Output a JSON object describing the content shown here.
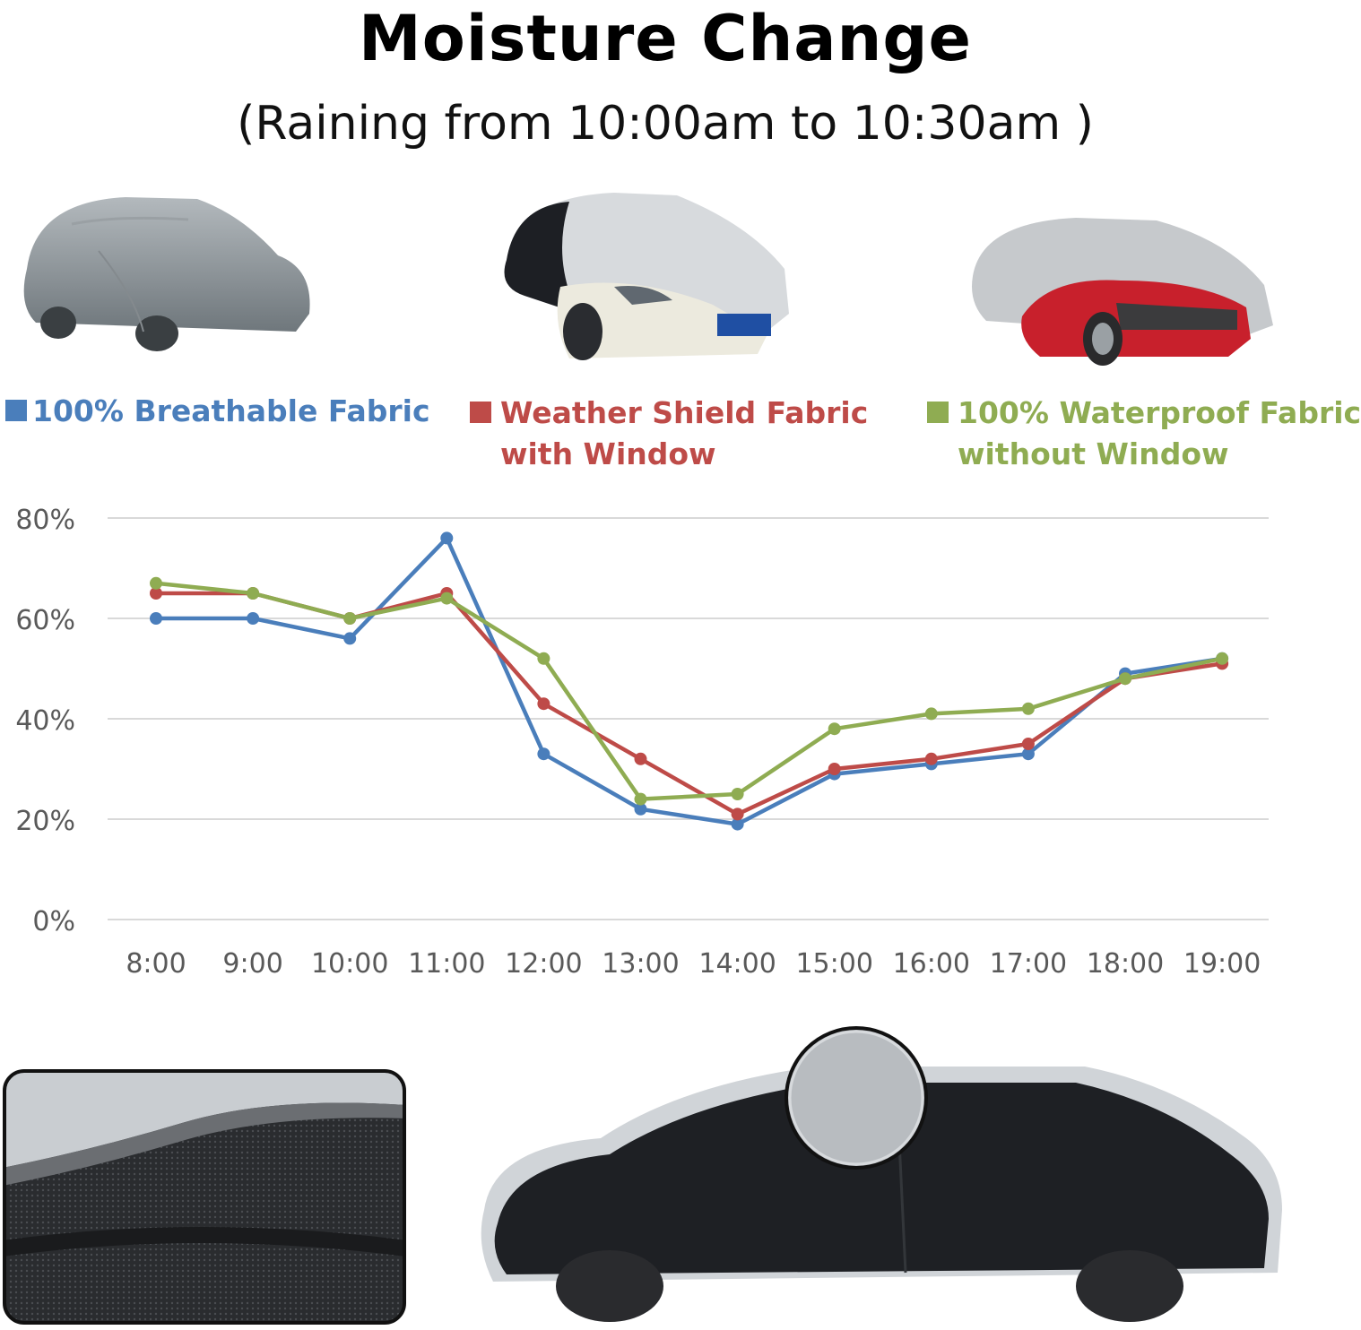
{
  "header": {
    "title": "Moisture Change",
    "subtitle": "(Raining from 10:00am to 10:30am )"
  },
  "legend": [
    {
      "line1": "100% Breathable Fabric",
      "line2": "",
      "color": "#4a7ebb"
    },
    {
      "line1": "Weather Shield Fabric",
      "line2": "with Window",
      "color": "#be4b48"
    },
    {
      "line1": "100% Waterproof Fabric",
      "line2": "without Window",
      "color": "#8fac52"
    }
  ],
  "chart_data": {
    "type": "line",
    "x": [
      "8:00",
      "9:00",
      "10:00",
      "11:00",
      "12:00",
      "13:00",
      "14:00",
      "15:00",
      "16:00",
      "17:00",
      "18:00",
      "19:00"
    ],
    "y_ticks": [
      "0%",
      "20%",
      "40%",
      "60%",
      "80%"
    ],
    "ylim": [
      0,
      80
    ],
    "grid": true,
    "legend_position": "top",
    "series": [
      {
        "name": "100% Breathable Fabric",
        "color": "#4a7ebb",
        "values": [
          60,
          60,
          56,
          76,
          33,
          22,
          19,
          29,
          31,
          33,
          49,
          52
        ]
      },
      {
        "name": "Weather Shield Fabric with Window",
        "color": "#be4b48",
        "values": [
          65,
          65,
          60,
          65,
          43,
          32,
          21,
          30,
          32,
          35,
          48,
          51
        ]
      },
      {
        "name": "100% Waterproof Fabric without Window",
        "color": "#8fac52",
        "values": [
          67,
          65,
          60,
          64,
          52,
          24,
          25,
          38,
          41,
          42,
          48,
          52
        ]
      }
    ]
  }
}
